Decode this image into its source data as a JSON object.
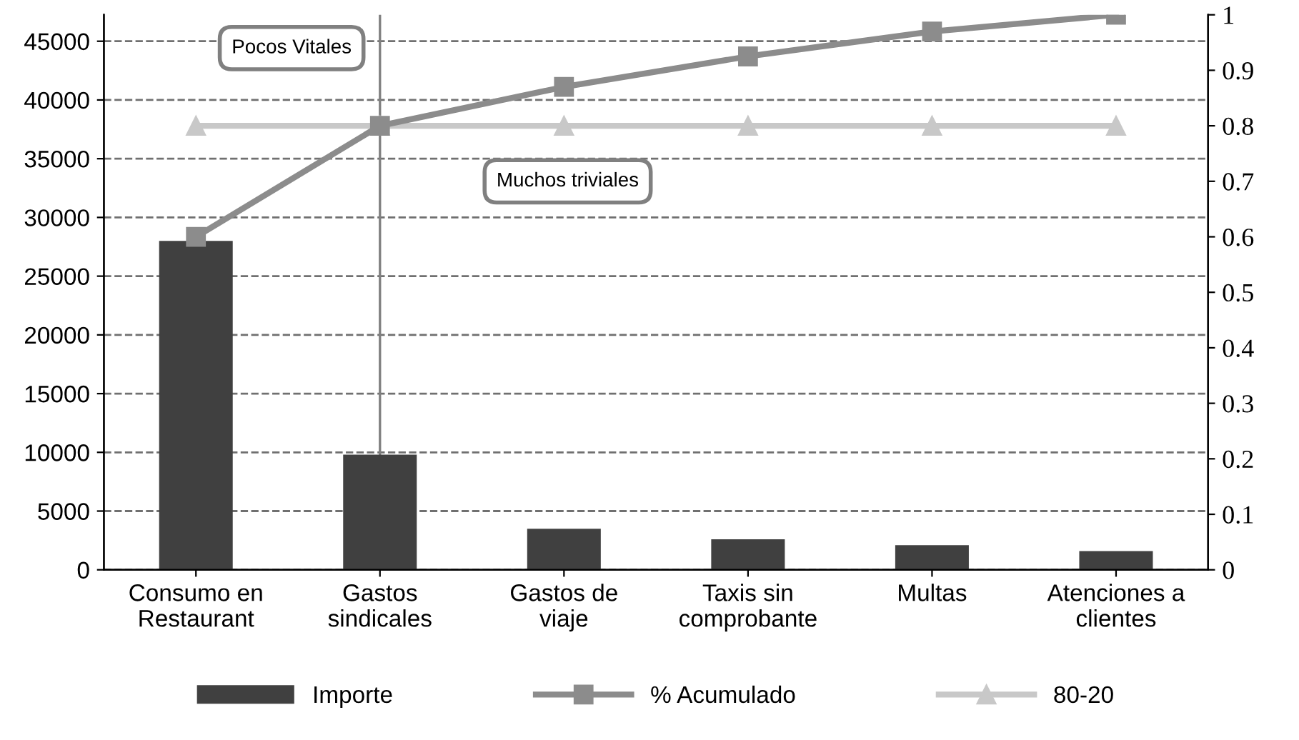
{
  "chart_data": {
    "type": "bar",
    "categories": [
      "Consumo en\nRestaurant",
      "Gastos\nsindicales",
      "Gastos de\nviaje",
      "Taxis sin\ncomprobante",
      "Multas",
      "Atenciones a\nclientes"
    ],
    "series": [
      {
        "name": "Importe",
        "color": "#404040",
        "values": [
          28000,
          9800,
          3500,
          2600,
          2100,
          1600
        ]
      },
      {
        "name": "% Acumulado",
        "type": "line",
        "axis": "y2",
        "marker": "square",
        "color": "#8c8c8c",
        "values": [
          0.6,
          0.8,
          0.87,
          0.925,
          0.97,
          1
        ]
      },
      {
        "name": "80-20",
        "type": "line",
        "axis": "y2",
        "marker": "triangle",
        "color": "#c8c8c8",
        "values": [
          0.8,
          0.8,
          0.8,
          0.8,
          0.8,
          0.8
        ]
      }
    ],
    "ylim": [
      0,
      47250
    ],
    "yticks": [
      0,
      5000,
      10000,
      15000,
      20000,
      25000,
      30000,
      35000,
      40000,
      45000
    ],
    "y2lim": [
      0,
      1
    ],
    "y2ticks": [
      0,
      0.1,
      0.2,
      0.3,
      0.4,
      0.5,
      0.6,
      0.7,
      0.8,
      0.9,
      1
    ],
    "ref_lines": [
      {
        "axis": "x",
        "value": "Gastos\nsindicales",
        "color": "#808080"
      }
    ],
    "annotations": [
      "Pocos Vitales",
      "Muchos triviales"
    ],
    "grid": "y",
    "legend": "bottom",
    "line_style": "solid"
  }
}
